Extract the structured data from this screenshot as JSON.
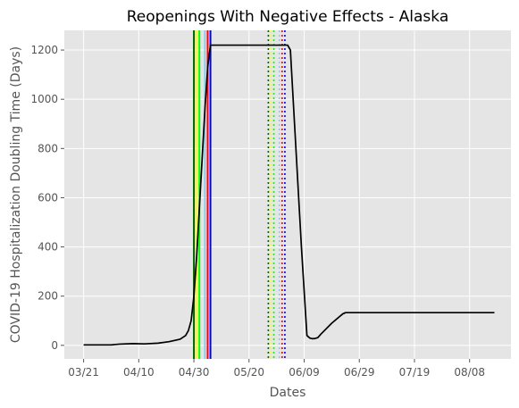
{
  "chart_data": {
    "type": "line",
    "title": "Reopenings With Negative Effects - Alaska",
    "xlabel": "Dates",
    "ylabel": "COVID-19 Hospitalization Doubling Time (Days)",
    "x_ticks": [
      "03/21",
      "04/10",
      "04/30",
      "05/20",
      "06/09",
      "06/29",
      "07/19",
      "08/08"
    ],
    "y_ticks": [
      0,
      200,
      400,
      600,
      800,
      1000,
      1200
    ],
    "xlim": [
      "2020-03-14",
      "2020-08-23"
    ],
    "ylim": [
      -55,
      1280
    ],
    "grid": true,
    "series": [
      {
        "color": "#000000",
        "points": [
          [
            "2020-03-21",
            2
          ],
          [
            "2020-03-26",
            2
          ],
          [
            "2020-03-31",
            2
          ],
          [
            "2020-04-03",
            5
          ],
          [
            "2020-04-08",
            7
          ],
          [
            "2020-04-12",
            6
          ],
          [
            "2020-04-17",
            9
          ],
          [
            "2020-04-21",
            15
          ],
          [
            "2020-04-25",
            25
          ],
          [
            "2020-04-27",
            40
          ],
          [
            "2020-04-28",
            60
          ],
          [
            "2020-04-29",
            100
          ],
          [
            "2020-04-30",
            200
          ],
          [
            "2020-05-01",
            360
          ],
          [
            "2020-05-02",
            560
          ],
          [
            "2020-05-03",
            760
          ],
          [
            "2020-05-04",
            960
          ],
          [
            "2020-05-05",
            1130
          ],
          [
            "2020-05-06",
            1220
          ],
          [
            "2020-06-03",
            1220
          ],
          [
            "2020-06-04",
            1200
          ],
          [
            "2020-06-06",
            800
          ],
          [
            "2020-06-08",
            400
          ],
          [
            "2020-06-10",
            40
          ],
          [
            "2020-06-11",
            30
          ],
          [
            "2020-06-12",
            27
          ],
          [
            "2020-06-13",
            28
          ],
          [
            "2020-06-14",
            32
          ],
          [
            "2020-06-15",
            45
          ],
          [
            "2020-06-19",
            90
          ],
          [
            "2020-06-23",
            128
          ],
          [
            "2020-06-24",
            133
          ],
          [
            "2020-08-17",
            133
          ]
        ]
      }
    ],
    "vertical_lines": [
      {
        "x": "2020-04-30",
        "color": "#006400",
        "style": "solid"
      },
      {
        "x": "2020-05-01",
        "color": "#ffff00",
        "style": "solid"
      },
      {
        "x": "2020-05-02",
        "color": "#00ff00",
        "style": "solid"
      },
      {
        "x": "2020-05-04",
        "color": "#87ceeb",
        "style": "solid"
      },
      {
        "x": "2020-05-05",
        "color": "#ff0000",
        "style": "solid"
      },
      {
        "x": "2020-05-06",
        "color": "#0000ff",
        "style": "solid"
      },
      {
        "x": "2020-05-27",
        "color": "#006400",
        "style": "dotted"
      },
      {
        "x": "2020-05-28",
        "color": "#ffff00",
        "style": "dotted"
      },
      {
        "x": "2020-05-29",
        "color": "#00ff00",
        "style": "dotted"
      },
      {
        "x": "2020-05-31",
        "color": "#87ceeb",
        "style": "dotted"
      },
      {
        "x": "2020-06-01",
        "color": "#ff0000",
        "style": "dotted"
      },
      {
        "x": "2020-06-02",
        "color": "#0000ff",
        "style": "dotted"
      }
    ],
    "colors": {
      "plot_background": "#e5e5e5",
      "grid": "#ffffff"
    }
  }
}
